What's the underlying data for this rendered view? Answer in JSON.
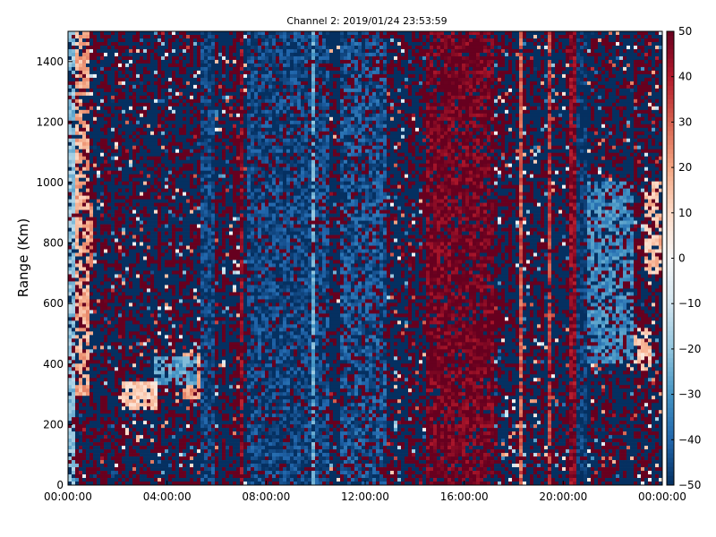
{
  "chart_data": {
    "type": "heatmap",
    "title": "Channel 2: 2019/01/24 23:53:59",
    "xlabel": "",
    "ylabel": "Range (Km)",
    "x_ticks": [
      "00:00:00",
      "04:00:00",
      "08:00:00",
      "12:00:00",
      "16:00:00",
      "20:00:00",
      "00:00:00"
    ],
    "x_tick_hours": [
      0,
      4,
      8,
      12,
      16,
      20,
      24
    ],
    "xlim_hours": [
      0,
      24
    ],
    "y_ticks": [
      "0",
      "200",
      "400",
      "600",
      "800",
      "1000",
      "1200",
      "1400"
    ],
    "y_tick_values": [
      0,
      200,
      400,
      600,
      800,
      1000,
      1200,
      1400
    ],
    "ylim": [
      0,
      1500
    ],
    "colorbar": {
      "ticks": [
        "50",
        "40",
        "30",
        "20",
        "10",
        "0",
        "−10",
        "−20",
        "−30",
        "−40",
        "−50"
      ],
      "tick_values": [
        50,
        40,
        30,
        20,
        10,
        0,
        -10,
        -20,
        -30,
        -40,
        -50
      ],
      "range": [
        -50,
        50
      ],
      "colormap": "RdBu_r",
      "colors": [
        "#053061",
        "#2166ac",
        "#4393c3",
        "#92c5de",
        "#d1e5f0",
        "#f7f7f7",
        "#fddbc7",
        "#f4a582",
        "#d6604d",
        "#b2182b",
        "#67001f"
      ]
    },
    "grid": false,
    "regions": [
      {
        "hours": [
          0.0,
          0.35
        ],
        "range_km": [
          0,
          1500
        ],
        "value": -20,
        "noise": 0.3
      },
      {
        "hours": [
          0.35,
          0.8
        ],
        "range_km": [
          300,
          1500
        ],
        "value": 18,
        "noise": 0.35
      },
      {
        "hours": [
          0.6,
          1.0
        ],
        "range_km": [
          720,
          950
        ],
        "value": 25,
        "noise": 0.2
      },
      {
        "hours": [
          2.2,
          3.6
        ],
        "range_km": [
          250,
          340
        ],
        "value": 12,
        "noise": 0.15
      },
      {
        "hours": [
          3.4,
          5.2
        ],
        "range_km": [
          330,
          420
        ],
        "value": -28,
        "noise": 0.25
      },
      {
        "hours": [
          4.6,
          5.4
        ],
        "range_km": [
          280,
          440
        ],
        "value": 20,
        "noise": 0.25
      },
      {
        "hours": [
          5.4,
          6.0
        ],
        "range_km": [
          0,
          1500
        ],
        "value": -46,
        "noise": 0.2
      },
      {
        "hours": [
          7.0,
          7.1
        ],
        "range_km": [
          0,
          1500
        ],
        "value": 45,
        "noise": 0.15
      },
      {
        "hours": [
          9.8,
          10.0
        ],
        "range_km": [
          0,
          1500
        ],
        "value": -25,
        "noise": 0.2
      },
      {
        "hours": [
          7.2,
          10.5
        ],
        "range_km": [
          0,
          1500
        ],
        "value": -45,
        "noise": 0.3
      },
      {
        "hours": [
          11.0,
          12.8
        ],
        "range_km": [
          0,
          1500
        ],
        "value": -42,
        "noise": 0.4
      },
      {
        "hours": [
          14.5,
          17.2
        ],
        "range_km": [
          0,
          1500
        ],
        "value": 48,
        "noise": 0.25
      },
      {
        "hours": [
          16.4,
          16.55
        ],
        "range_km": [
          0,
          1500
        ],
        "value": 35,
        "noise": 0.1
      },
      {
        "hours": [
          18.2,
          18.3
        ],
        "range_km": [
          0,
          1500
        ],
        "value": 30,
        "noise": 0.1
      },
      {
        "hours": [
          19.4,
          19.5
        ],
        "range_km": [
          0,
          1500
        ],
        "value": 35,
        "noise": 0.1
      },
      {
        "hours": [
          20.3,
          20.5
        ],
        "range_km": [
          0,
          1500
        ],
        "value": 45,
        "noise": 0.1
      },
      {
        "hours": [
          20.6,
          21.0
        ],
        "range_km": [
          0,
          1500
        ],
        "value": -48,
        "noise": 0.15
      },
      {
        "hours": [
          21.0,
          22.8
        ],
        "range_km": [
          400,
          1000
        ],
        "value": -32,
        "noise": 0.35
      },
      {
        "hours": [
          21.2,
          22.4
        ],
        "range_km": [
          420,
          700
        ],
        "value": -40,
        "noise": 0.2
      },
      {
        "hours": [
          22.6,
          23.6
        ],
        "range_km": [
          380,
          520
        ],
        "value": 12,
        "noise": 0.3
      },
      {
        "hours": [
          23.3,
          24.0
        ],
        "range_km": [
          700,
          1000
        ],
        "value": 15,
        "noise": 0.35
      }
    ]
  }
}
